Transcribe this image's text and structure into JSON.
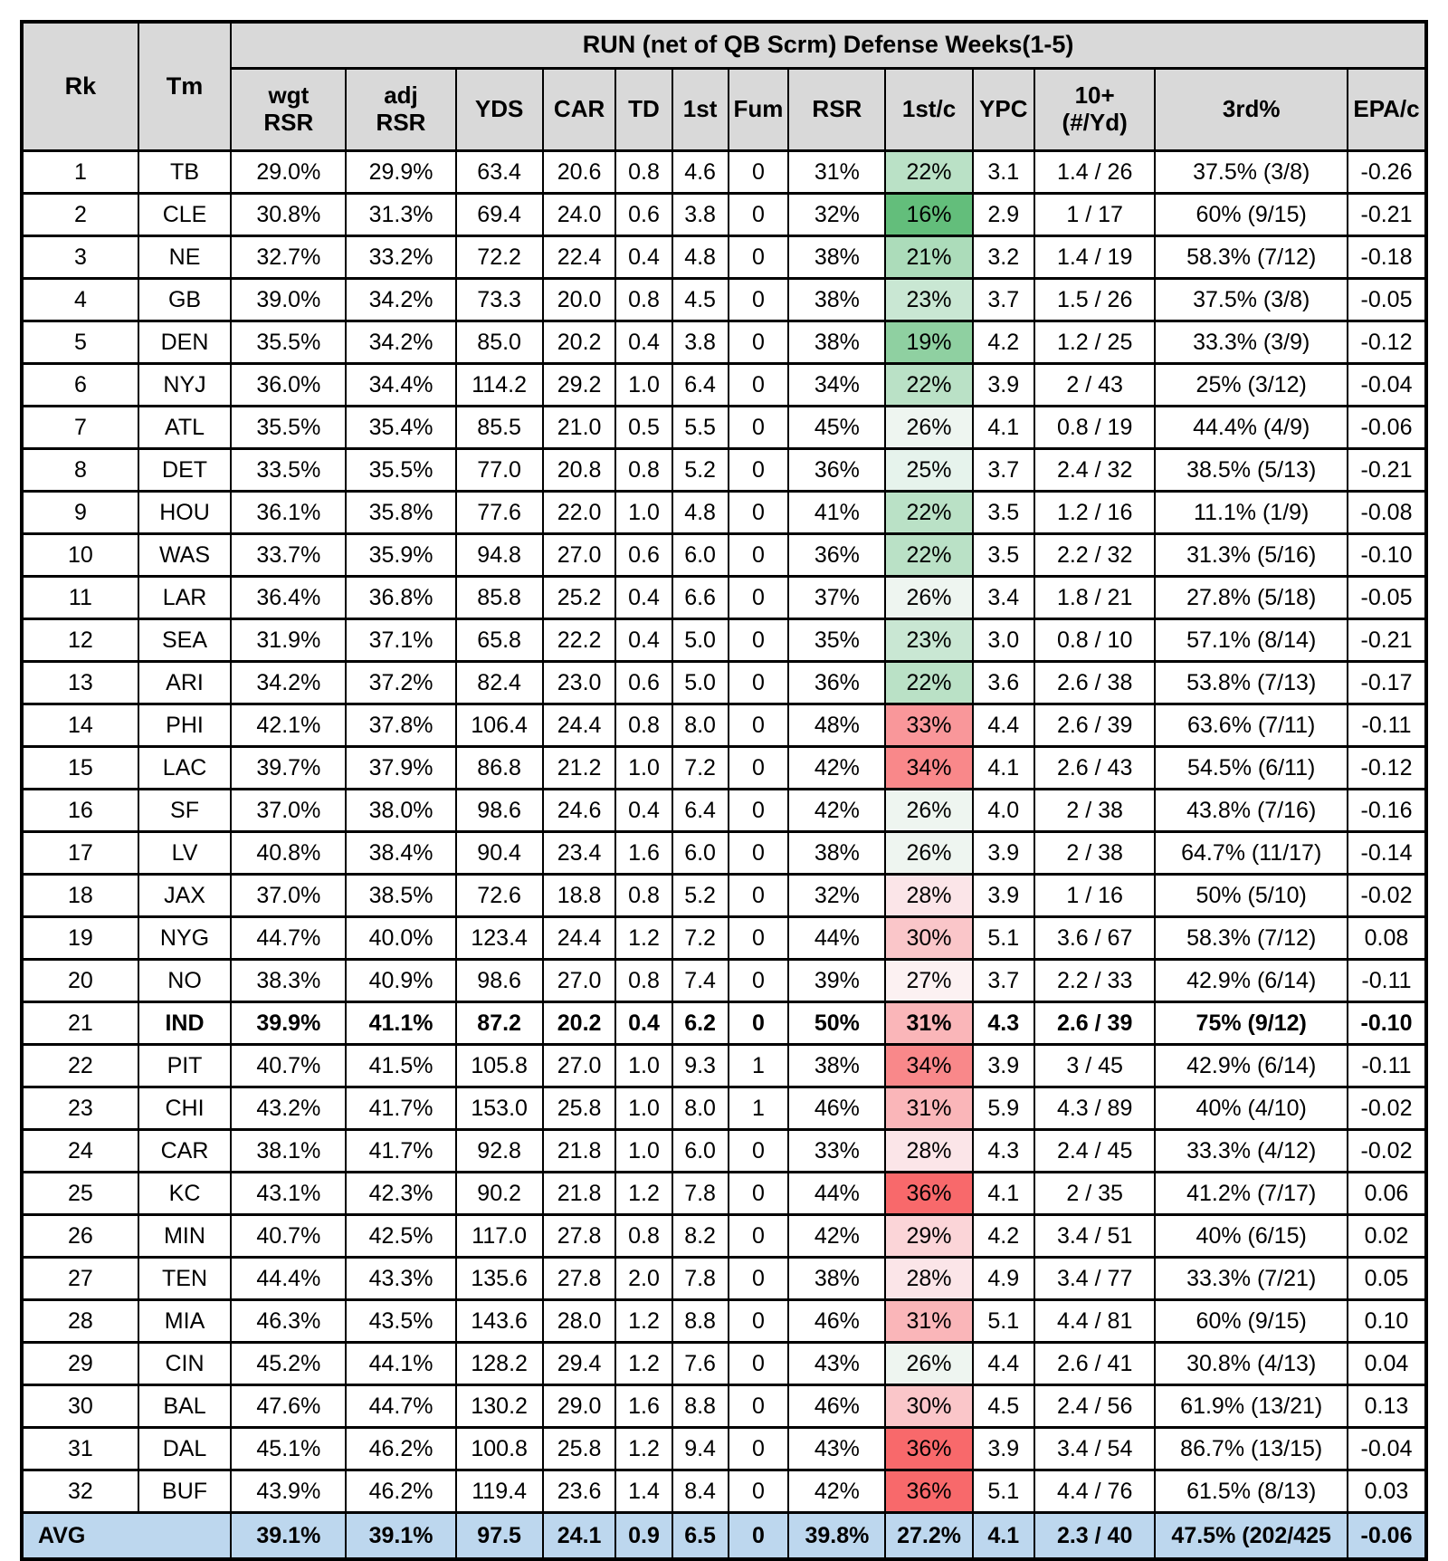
{
  "chart_data": {
    "type": "table",
    "title": "RUN (net of QB Scrm) Defense Weeks(1-5)",
    "colors": {
      "header_bg": "#d9d9d9",
      "avg_bg": "#bdd7ee",
      "border": "#000000",
      "scale_green": "#63be7b",
      "scale_white": "#fcfcff",
      "scale_red": "#f8696b"
    },
    "columns": [
      {
        "l1": "Rk",
        "l2": ""
      },
      {
        "l1": "Tm",
        "l2": ""
      },
      {
        "l1": "wgt",
        "l2": "RSR"
      },
      {
        "l1": "adj",
        "l2": "RSR"
      },
      {
        "l1": "YDS",
        "l2": ""
      },
      {
        "l1": "CAR",
        "l2": ""
      },
      {
        "l1": "TD",
        "l2": ""
      },
      {
        "l1": "1st",
        "l2": ""
      },
      {
        "l1": "Fum",
        "l2": ""
      },
      {
        "l1": "RSR",
        "l2": ""
      },
      {
        "l1": "1st/c",
        "l2": ""
      },
      {
        "l1": "YPC",
        "l2": ""
      },
      {
        "l1": "10+",
        "l2": "(#/Yd)"
      },
      {
        "l1": "3rd%",
        "l2": ""
      },
      {
        "l1": "EPA/c",
        "l2": ""
      }
    ],
    "rows": [
      {
        "rk": "1",
        "tm": "TB",
        "wgt": "29.0%",
        "adj": "29.9%",
        "yds": "63.4",
        "car": "20.6",
        "td": "0.8",
        "first": "4.6",
        "fum": "0",
        "rsr": "31%",
        "fc": "22%",
        "fc_color": "#bae1c6",
        "ypc": "3.1",
        "tenplus": "1.4 / 26",
        "third": "37.5% (3/8)",
        "epa": "-0.26",
        "bold": false
      },
      {
        "rk": "2",
        "tm": "CLE",
        "wgt": "30.8%",
        "adj": "31.3%",
        "yds": "69.4",
        "car": "24.0",
        "td": "0.6",
        "first": "3.8",
        "fum": "0",
        "rsr": "32%",
        "fc": "16%",
        "fc_color": "#63be7b",
        "ypc": "2.9",
        "tenplus": "1 / 17",
        "third": "60% (9/15)",
        "epa": "-0.21",
        "bold": false
      },
      {
        "rk": "3",
        "tm": "NE",
        "wgt": "32.7%",
        "adj": "33.2%",
        "yds": "72.2",
        "car": "22.4",
        "td": "0.4",
        "first": "4.8",
        "fum": "0",
        "rsr": "38%",
        "fc": "21%",
        "fc_color": "#acdcba",
        "ypc": "3.2",
        "tenplus": "1.4 / 19",
        "third": "58.3% (7/12)",
        "epa": "-0.18",
        "bold": false
      },
      {
        "rk": "4",
        "tm": "GB",
        "wgt": "39.0%",
        "adj": "34.2%",
        "yds": "73.3",
        "car": "20.0",
        "td": "0.8",
        "first": "4.5",
        "fum": "0",
        "rsr": "38%",
        "fc": "23%",
        "fc_color": "#c9e7d3",
        "ypc": "3.7",
        "tenplus": "1.5 / 26",
        "third": "37.5% (3/8)",
        "epa": "-0.05",
        "bold": false
      },
      {
        "rk": "5",
        "tm": "DEN",
        "wgt": "35.5%",
        "adj": "34.2%",
        "yds": "85.0",
        "car": "20.2",
        "td": "0.4",
        "first": "3.8",
        "fum": "0",
        "rsr": "38%",
        "fc": "19%",
        "fc_color": "#8fd0a1",
        "ypc": "4.2",
        "tenplus": "1.2 / 25",
        "third": "33.3% (3/9)",
        "epa": "-0.12",
        "bold": false
      },
      {
        "rk": "6",
        "tm": "NYJ",
        "wgt": "36.0%",
        "adj": "34.4%",
        "yds": "114.2",
        "car": "29.2",
        "td": "1.0",
        "first": "6.4",
        "fum": "0",
        "rsr": "34%",
        "fc": "22%",
        "fc_color": "#bae1c6",
        "ypc": "3.9",
        "tenplus": "2 / 43",
        "third": "25% (3/12)",
        "epa": "-0.04",
        "bold": false
      },
      {
        "rk": "7",
        "tm": "ATL",
        "wgt": "35.5%",
        "adj": "35.4%",
        "yds": "85.5",
        "car": "21.0",
        "td": "0.5",
        "first": "5.5",
        "fum": "0",
        "rsr": "45%",
        "fc": "26%",
        "fc_color": "#eef5f0",
        "ypc": "4.1",
        "tenplus": "0.8 / 19",
        "third": "44.4% (4/9)",
        "epa": "-0.06",
        "bold": false
      },
      {
        "rk": "8",
        "tm": "DET",
        "wgt": "33.5%",
        "adj": "35.5%",
        "yds": "77.0",
        "car": "20.8",
        "td": "0.8",
        "first": "5.2",
        "fum": "0",
        "rsr": "36%",
        "fc": "25%",
        "fc_color": "#e6f3ec",
        "ypc": "3.7",
        "tenplus": "2.4 / 32",
        "third": "38.5% (5/13)",
        "epa": "-0.21",
        "bold": false
      },
      {
        "rk": "9",
        "tm": "HOU",
        "wgt": "36.1%",
        "adj": "35.8%",
        "yds": "77.6",
        "car": "22.0",
        "td": "1.0",
        "first": "4.8",
        "fum": "0",
        "rsr": "41%",
        "fc": "22%",
        "fc_color": "#bae1c6",
        "ypc": "3.5",
        "tenplus": "1.2 / 16",
        "third": "11.1% (1/9)",
        "epa": "-0.08",
        "bold": false
      },
      {
        "rk": "10",
        "tm": "WAS",
        "wgt": "33.7%",
        "adj": "35.9%",
        "yds": "94.8",
        "car": "27.0",
        "td": "0.6",
        "first": "6.0",
        "fum": "0",
        "rsr": "36%",
        "fc": "22%",
        "fc_color": "#bae1c6",
        "ypc": "3.5",
        "tenplus": "2.2 / 32",
        "third": "31.3% (5/16)",
        "epa": "-0.10",
        "bold": false
      },
      {
        "rk": "11",
        "tm": "LAR",
        "wgt": "36.4%",
        "adj": "36.8%",
        "yds": "85.8",
        "car": "25.2",
        "td": "0.4",
        "first": "6.6",
        "fum": "0",
        "rsr": "37%",
        "fc": "26%",
        "fc_color": "#eef5f0",
        "ypc": "3.4",
        "tenplus": "1.8 / 21",
        "third": "27.8% (5/18)",
        "epa": "-0.05",
        "bold": false
      },
      {
        "rk": "12",
        "tm": "SEA",
        "wgt": "31.9%",
        "adj": "37.1%",
        "yds": "65.8",
        "car": "22.2",
        "td": "0.4",
        "first": "5.0",
        "fum": "0",
        "rsr": "35%",
        "fc": "23%",
        "fc_color": "#c9e7d3",
        "ypc": "3.0",
        "tenplus": "0.8 / 10",
        "third": "57.1% (8/14)",
        "epa": "-0.21",
        "bold": false
      },
      {
        "rk": "13",
        "tm": "ARI",
        "wgt": "34.2%",
        "adj": "37.2%",
        "yds": "82.4",
        "car": "23.0",
        "td": "0.6",
        "first": "5.0",
        "fum": "0",
        "rsr": "36%",
        "fc": "22%",
        "fc_color": "#bae1c6",
        "ypc": "3.6",
        "tenplus": "2.6 / 38",
        "third": "53.8% (7/13)",
        "epa": "-0.17",
        "bold": false
      },
      {
        "rk": "14",
        "tm": "PHI",
        "wgt": "42.1%",
        "adj": "37.8%",
        "yds": "106.4",
        "car": "24.4",
        "td": "0.8",
        "first": "8.0",
        "fum": "0",
        "rsr": "48%",
        "fc": "33%",
        "fc_color": "#f9979a",
        "ypc": "4.4",
        "tenplus": "2.6 / 39",
        "third": "63.6% (7/11)",
        "epa": "-0.11",
        "bold": false
      },
      {
        "rk": "15",
        "tm": "LAC",
        "wgt": "39.7%",
        "adj": "37.9%",
        "yds": "86.8",
        "car": "21.2",
        "td": "1.0",
        "first": "7.2",
        "fum": "0",
        "rsr": "42%",
        "fc": "34%",
        "fc_color": "#f9888a",
        "ypc": "4.1",
        "tenplus": "2.6 / 43",
        "third": "54.5% (6/11)",
        "epa": "-0.12",
        "bold": false
      },
      {
        "rk": "16",
        "tm": "SF",
        "wgt": "37.0%",
        "adj": "38.0%",
        "yds": "98.6",
        "car": "24.6",
        "td": "0.4",
        "first": "6.4",
        "fum": "0",
        "rsr": "42%",
        "fc": "26%",
        "fc_color": "#eef5f0",
        "ypc": "4.0",
        "tenplus": "2 / 38",
        "third": "43.8% (7/16)",
        "epa": "-0.16",
        "bold": false
      },
      {
        "rk": "17",
        "tm": "LV",
        "wgt": "40.8%",
        "adj": "38.4%",
        "yds": "90.4",
        "car": "23.4",
        "td": "1.6",
        "first": "6.0",
        "fum": "0",
        "rsr": "38%",
        "fc": "26%",
        "fc_color": "#eef5f0",
        "ypc": "3.9",
        "tenplus": "2 / 38",
        "third": "64.7% (11/17)",
        "epa": "-0.14",
        "bold": false
      },
      {
        "rk": "18",
        "tm": "JAX",
        "wgt": "37.0%",
        "adj": "38.5%",
        "yds": "72.6",
        "car": "18.8",
        "td": "0.8",
        "first": "5.2",
        "fum": "0",
        "rsr": "32%",
        "fc": "28%",
        "fc_color": "#fbe5e8",
        "ypc": "3.9",
        "tenplus": "1 / 16",
        "third": "50% (5/10)",
        "epa": "-0.02",
        "bold": false
      },
      {
        "rk": "19",
        "tm": "NYG",
        "wgt": "44.7%",
        "adj": "40.0%",
        "yds": "123.4",
        "car": "24.4",
        "td": "1.2",
        "first": "7.2",
        "fum": "0",
        "rsr": "44%",
        "fc": "30%",
        "fc_color": "#fac6c9",
        "ypc": "5.1",
        "tenplus": "3.6 / 67",
        "third": "58.3% (7/12)",
        "epa": "0.08",
        "bold": false
      },
      {
        "rk": "20",
        "tm": "NO",
        "wgt": "38.3%",
        "adj": "40.9%",
        "yds": "98.6",
        "car": "27.0",
        "td": "0.8",
        "first": "7.4",
        "fum": "0",
        "rsr": "39%",
        "fc": "27%",
        "fc_color": "#fcf1f2",
        "ypc": "3.7",
        "tenplus": "2.2 / 33",
        "third": "42.9% (6/14)",
        "epa": "-0.11",
        "bold": false
      },
      {
        "rk": "21",
        "tm": "IND",
        "wgt": "39.9%",
        "adj": "41.1%",
        "yds": "87.2",
        "car": "20.2",
        "td": "0.4",
        "first": "6.2",
        "fum": "0",
        "rsr": "50%",
        "fc": "31%",
        "fc_color": "#fab6b9",
        "ypc": "4.3",
        "tenplus": "2.6 / 39",
        "third": "75% (9/12)",
        "epa": "-0.10",
        "bold": true
      },
      {
        "rk": "22",
        "tm": "PIT",
        "wgt": "40.7%",
        "adj": "41.5%",
        "yds": "105.8",
        "car": "27.0",
        "td": "1.0",
        "first": "9.3",
        "fum": "1",
        "rsr": "38%",
        "fc": "34%",
        "fc_color": "#f9888a",
        "ypc": "3.9",
        "tenplus": "3 / 45",
        "third": "42.9% (6/14)",
        "epa": "-0.11",
        "bold": false
      },
      {
        "rk": "23",
        "tm": "CHI",
        "wgt": "43.2%",
        "adj": "41.7%",
        "yds": "153.0",
        "car": "25.8",
        "td": "1.0",
        "first": "8.0",
        "fum": "1",
        "rsr": "46%",
        "fc": "31%",
        "fc_color": "#fab6b9",
        "ypc": "5.9",
        "tenplus": "4.3 / 89",
        "third": "40% (4/10)",
        "epa": "-0.02",
        "bold": false
      },
      {
        "rk": "24",
        "tm": "CAR",
        "wgt": "38.1%",
        "adj": "41.7%",
        "yds": "92.8",
        "car": "21.8",
        "td": "1.0",
        "first": "6.0",
        "fum": "0",
        "rsr": "33%",
        "fc": "28%",
        "fc_color": "#fbe5e8",
        "ypc": "4.3",
        "tenplus": "2.4 / 45",
        "third": "33.3% (4/12)",
        "epa": "-0.02",
        "bold": false
      },
      {
        "rk": "25",
        "tm": "KC",
        "wgt": "43.1%",
        "adj": "42.3%",
        "yds": "90.2",
        "car": "21.8",
        "td": "1.2",
        "first": "7.8",
        "fum": "0",
        "rsr": "44%",
        "fc": "36%",
        "fc_color": "#f8696b",
        "ypc": "4.1",
        "tenplus": "2 / 35",
        "third": "41.2% (7/17)",
        "epa": "0.06",
        "bold": false
      },
      {
        "rk": "26",
        "tm": "MIN",
        "wgt": "40.7%",
        "adj": "42.5%",
        "yds": "117.0",
        "car": "27.8",
        "td": "0.8",
        "first": "8.2",
        "fum": "0",
        "rsr": "42%",
        "fc": "29%",
        "fc_color": "#fbd5d8",
        "ypc": "4.2",
        "tenplus": "3.4 / 51",
        "third": "40% (6/15)",
        "epa": "0.02",
        "bold": false
      },
      {
        "rk": "27",
        "tm": "TEN",
        "wgt": "44.4%",
        "adj": "43.3%",
        "yds": "135.6",
        "car": "27.8",
        "td": "2.0",
        "first": "7.8",
        "fum": "0",
        "rsr": "38%",
        "fc": "28%",
        "fc_color": "#fbe5e8",
        "ypc": "4.9",
        "tenplus": "3.4 / 77",
        "third": "33.3% (7/21)",
        "epa": "0.05",
        "bold": false
      },
      {
        "rk": "28",
        "tm": "MIA",
        "wgt": "46.3%",
        "adj": "43.5%",
        "yds": "143.6",
        "car": "28.0",
        "td": "1.2",
        "first": "8.8",
        "fum": "0",
        "rsr": "46%",
        "fc": "31%",
        "fc_color": "#fab6b9",
        "ypc": "5.1",
        "tenplus": "4.4 / 81",
        "third": "60% (9/15)",
        "epa": "0.10",
        "bold": false
      },
      {
        "rk": "29",
        "tm": "CIN",
        "wgt": "45.2%",
        "adj": "44.1%",
        "yds": "128.2",
        "car": "29.4",
        "td": "1.2",
        "first": "7.6",
        "fum": "0",
        "rsr": "43%",
        "fc": "26%",
        "fc_color": "#eef5f0",
        "ypc": "4.4",
        "tenplus": "2.6 / 41",
        "third": "30.8% (4/13)",
        "epa": "0.04",
        "bold": false
      },
      {
        "rk": "30",
        "tm": "BAL",
        "wgt": "47.6%",
        "adj": "44.7%",
        "yds": "130.2",
        "car": "29.0",
        "td": "1.6",
        "first": "8.8",
        "fum": "0",
        "rsr": "46%",
        "fc": "30%",
        "fc_color": "#fac6c9",
        "ypc": "4.5",
        "tenplus": "2.4 / 56",
        "third": "61.9% (13/21)",
        "epa": "0.13",
        "bold": false
      },
      {
        "rk": "31",
        "tm": "DAL",
        "wgt": "45.1%",
        "adj": "46.2%",
        "yds": "100.8",
        "car": "25.8",
        "td": "1.2",
        "first": "9.4",
        "fum": "0",
        "rsr": "43%",
        "fc": "36%",
        "fc_color": "#f8696b",
        "ypc": "3.9",
        "tenplus": "3.4 / 54",
        "third": "86.7% (13/15)",
        "epa": "-0.04",
        "bold": false
      },
      {
        "rk": "32",
        "tm": "BUF",
        "wgt": "43.9%",
        "adj": "46.2%",
        "yds": "119.4",
        "car": "23.6",
        "td": "1.4",
        "first": "8.4",
        "fum": "0",
        "rsr": "42%",
        "fc": "36%",
        "fc_color": "#f8696b",
        "ypc": "5.1",
        "tenplus": "4.4 / 76",
        "third": "61.5% (8/13)",
        "epa": "0.03",
        "bold": false
      }
    ],
    "avg": {
      "label": "AVG",
      "wgt": "39.1%",
      "adj": "39.1%",
      "yds": "97.5",
      "car": "24.1",
      "td": "0.9",
      "first": "6.5",
      "fum": "0",
      "rsr": "39.8%",
      "fc": "27.2%",
      "ypc": "4.1",
      "tenplus": "2.3 / 40",
      "third": "47.5% (202/425",
      "epa": "-0.06"
    }
  }
}
